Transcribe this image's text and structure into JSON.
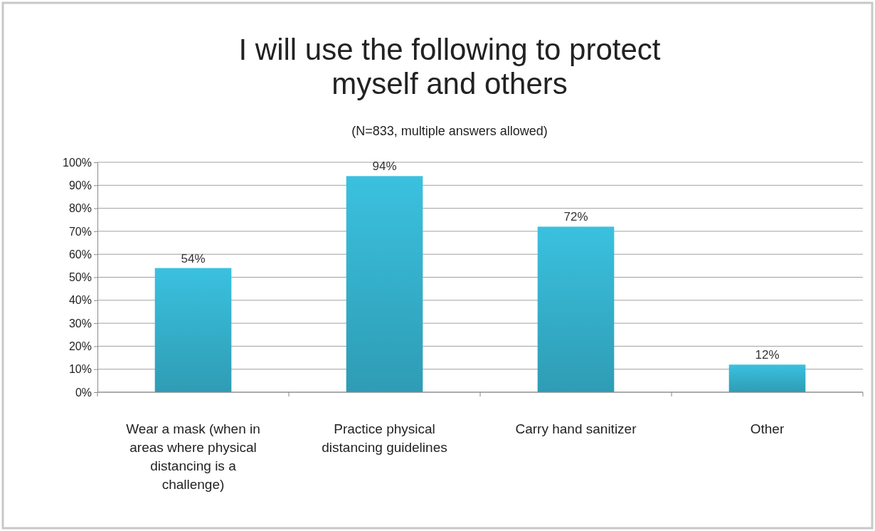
{
  "chart_data": {
    "type": "bar",
    "title": "I will use the following to protect myself and others",
    "subtitle": "(N=833, multiple answers allowed)",
    "categories": [
      "Wear a mask (when in areas where physical distancing is a challenge)",
      "Practice physical distancing guidelines",
      "Carry hand sanitizer",
      "Other"
    ],
    "values": [
      54,
      94,
      72,
      12
    ],
    "color": "#36b4d0",
    "value_labels": [
      "54%",
      "94%",
      "72%",
      "12%"
    ],
    "ylim": [
      0,
      100
    ],
    "yticks": [
      {
        "value": 0,
        "label": "0%"
      },
      {
        "value": 10,
        "label": "10%"
      },
      {
        "value": 20,
        "label": "20%"
      },
      {
        "value": 30,
        "label": "30%"
      },
      {
        "value": 40,
        "label": "40%"
      },
      {
        "value": 50,
        "label": "50%"
      },
      {
        "value": 60,
        "label": "60%"
      },
      {
        "value": 70,
        "label": "70%"
      },
      {
        "value": 80,
        "label": "80%"
      },
      {
        "value": 90,
        "label": "90%"
      },
      {
        "value": 100,
        "label": "100%"
      }
    ],
    "grid": "y"
  }
}
